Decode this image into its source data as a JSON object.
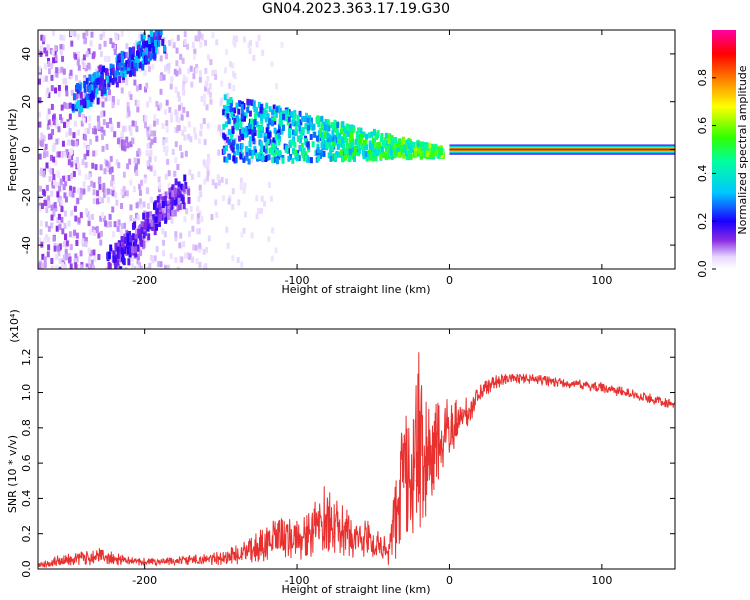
{
  "title": "GN04.2023.363.17.19.G30",
  "colors": {
    "line": "#e8302e",
    "background": "#ffffff",
    "axis": "#000000"
  },
  "chart_data": [
    {
      "type": "heatmap",
      "title": "GN04.2023.363.17.19.G30",
      "xlabel": "Height of straight line (km)",
      "ylabel": "Frequency (Hz)",
      "xlim": [
        -270,
        148
      ],
      "ylim": [
        -50,
        50
      ],
      "x_ticks": [
        "-200",
        "-100",
        "0",
        "100"
      ],
      "y_ticks": [
        "-40",
        "-20",
        "0",
        "20",
        "40"
      ],
      "grid": false,
      "colorbar": {
        "label": "Normalized spectral amplitude",
        "range": [
          0,
          1
        ],
        "ticks": [
          "0.0",
          "0.2",
          "0.4",
          "0.6",
          "0.8"
        ],
        "colormap": "rainbow (white-purple-blue-cyan-green-yellow-red-magenta)"
      },
      "features": [
        {
          "name": "steady tone",
          "x_start": 0,
          "x_end": 148,
          "frequency": 0,
          "amplitude": 0.9
        },
        {
          "name": "converging band",
          "x_start": -150,
          "x_end": -5,
          "frequency_start": 10,
          "frequency_end": 0,
          "amplitude": 0.45
        },
        {
          "name": "upper diagonal streak",
          "x_start": -245,
          "x_end": -190,
          "frequency_start": 22,
          "frequency_end": 48,
          "amplitude": 0.35
        },
        {
          "name": "lower diagonal streak",
          "x_start": -225,
          "x_end": -175,
          "frequency_start": -48,
          "frequency_end": -15,
          "amplitude": 0.2
        }
      ]
    },
    {
      "type": "line",
      "xlabel": "Height of straight line (km)",
      "ylabel": "SNR (10 * v/v)",
      "y_multiplier": "(x10⁴)",
      "xlim": [
        -270,
        148
      ],
      "ylim": [
        0,
        1.36
      ],
      "x_ticks": [
        "-200",
        "-100",
        "0",
        "100"
      ],
      "y_ticks": [
        "0.0",
        "0.2",
        "0.4",
        "0.6",
        "0.8",
        "1.0",
        "1.2"
      ],
      "grid": false,
      "series": [
        {
          "x": [
            -270,
            -250,
            -230,
            -210,
            -190,
            -170,
            -150,
            -130,
            -120,
            -110,
            -100,
            -90,
            -85,
            -80,
            -75,
            -70,
            -60,
            -50,
            -45,
            -40,
            -35,
            -32,
            -30,
            -28,
            -25,
            -22,
            -20,
            -18,
            -15,
            -12,
            -10,
            -5,
            0,
            5,
            10,
            15,
            20,
            25,
            30,
            40,
            50,
            60,
            70,
            80,
            90,
            100,
            110,
            120,
            130,
            140,
            148
          ],
          "values": [
            0.02,
            0.05,
            0.05,
            0.04,
            0.04,
            0.05,
            0.06,
            0.08,
            0.12,
            0.15,
            0.15,
            0.18,
            0.22,
            0.3,
            0.2,
            0.18,
            0.16,
            0.12,
            0.09,
            0.08,
            0.3,
            0.6,
            0.75,
            0.6,
            0.55,
            0.5,
            0.95,
            0.7,
            0.65,
            0.62,
            0.7,
            0.75,
            0.8,
            0.85,
            0.88,
            0.92,
            1.0,
            1.03,
            1.06,
            1.08,
            1.08,
            1.07,
            1.06,
            1.05,
            1.04,
            1.03,
            1.01,
            0.99,
            0.97,
            0.95,
            0.93
          ],
          "upper": [
            0.04,
            0.1,
            0.12,
            0.07,
            0.06,
            0.08,
            0.1,
            0.18,
            0.26,
            0.3,
            0.28,
            0.35,
            0.45,
            0.5,
            0.4,
            0.36,
            0.32,
            0.26,
            0.2,
            0.2,
            0.55,
            0.9,
            1.0,
            0.85,
            0.8,
            1.05,
            1.36,
            1.1,
            0.95,
            0.92,
            0.95,
            0.95,
            0.98,
            0.98,
            0.98,
            1.0,
            1.06,
            1.08,
            1.1,
            1.11,
            1.11,
            1.1,
            1.09,
            1.08,
            1.07,
            1.06,
            1.04,
            1.02,
            1.0,
            0.98,
            0.96
          ],
          "lower": [
            0.0,
            0.02,
            0.02,
            0.02,
            0.02,
            0.02,
            0.02,
            0.03,
            0.04,
            0.05,
            0.05,
            0.06,
            0.08,
            0.1,
            0.06,
            0.06,
            0.05,
            0.04,
            0.03,
            0.02,
            0.05,
            0.15,
            0.2,
            0.15,
            0.12,
            0.1,
            0.2,
            0.25,
            0.3,
            0.3,
            0.4,
            0.5,
            0.6,
            0.72,
            0.78,
            0.85,
            0.95,
            0.99,
            1.02,
            1.05,
            1.05,
            1.04,
            1.03,
            1.02,
            1.01,
            1.0,
            0.98,
            0.96,
            0.94,
            0.92,
            0.9
          ]
        }
      ]
    }
  ]
}
